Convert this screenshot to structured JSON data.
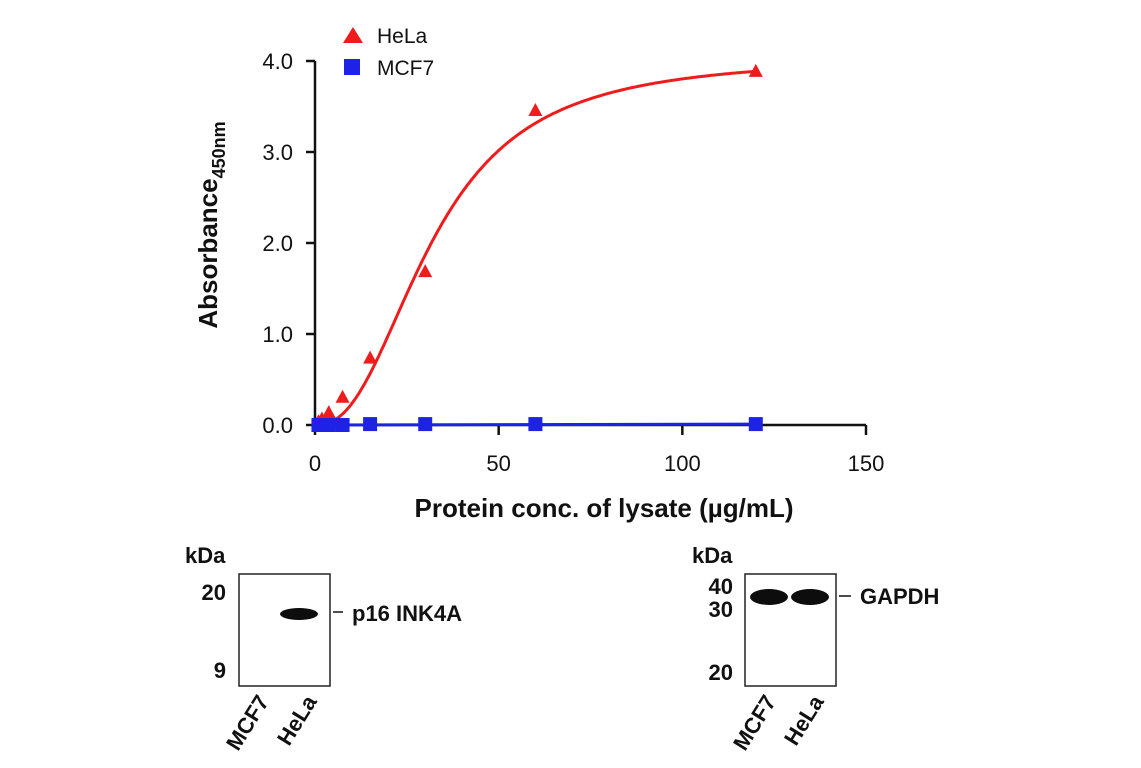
{
  "chart_data": {
    "type": "scatter",
    "xlabel": "Protein conc. of lysate (µg/mL)",
    "ylabel": "Absorbance",
    "ylabel_subscript": "450nm",
    "xlim": [
      0,
      150
    ],
    "ylim": [
      0,
      4.0
    ],
    "xticks": [
      "0",
      "50",
      "100",
      "150"
    ],
    "yticks": [
      "0.0",
      "1.0",
      "2.0",
      "3.0",
      "4.0"
    ],
    "grid": false,
    "legend_position": "top-left",
    "series": [
      {
        "name": "HeLa",
        "marker": "triangle",
        "color": "#ee1c1c",
        "x": [
          0.94,
          1.88,
          3.75,
          7.5,
          15,
          30,
          60,
          120
        ],
        "y": [
          0.03,
          0.06,
          0.13,
          0.3,
          0.73,
          1.68,
          3.45,
          3.88
        ],
        "fit_curve": true
      },
      {
        "name": "MCF7",
        "marker": "square",
        "color": "#1e22e6",
        "x": [
          0.94,
          1.88,
          3.75,
          7.5,
          15,
          30,
          60,
          120
        ],
        "y": [
          0.0,
          0.0,
          0.0,
          0.0,
          0.01,
          0.01,
          0.01,
          0.01
        ],
        "fit_curve": true
      }
    ]
  },
  "western_blots": [
    {
      "unit": "kDa",
      "markers": [
        "20",
        "9"
      ],
      "target": "p16 INK4A",
      "lanes": [
        "MCF7",
        "HeLa"
      ]
    },
    {
      "unit": "kDa",
      "markers": [
        "40",
        "30",
        "20"
      ],
      "target": "GAPDH",
      "lanes": [
        "MCF7",
        "HeLa"
      ]
    }
  ]
}
